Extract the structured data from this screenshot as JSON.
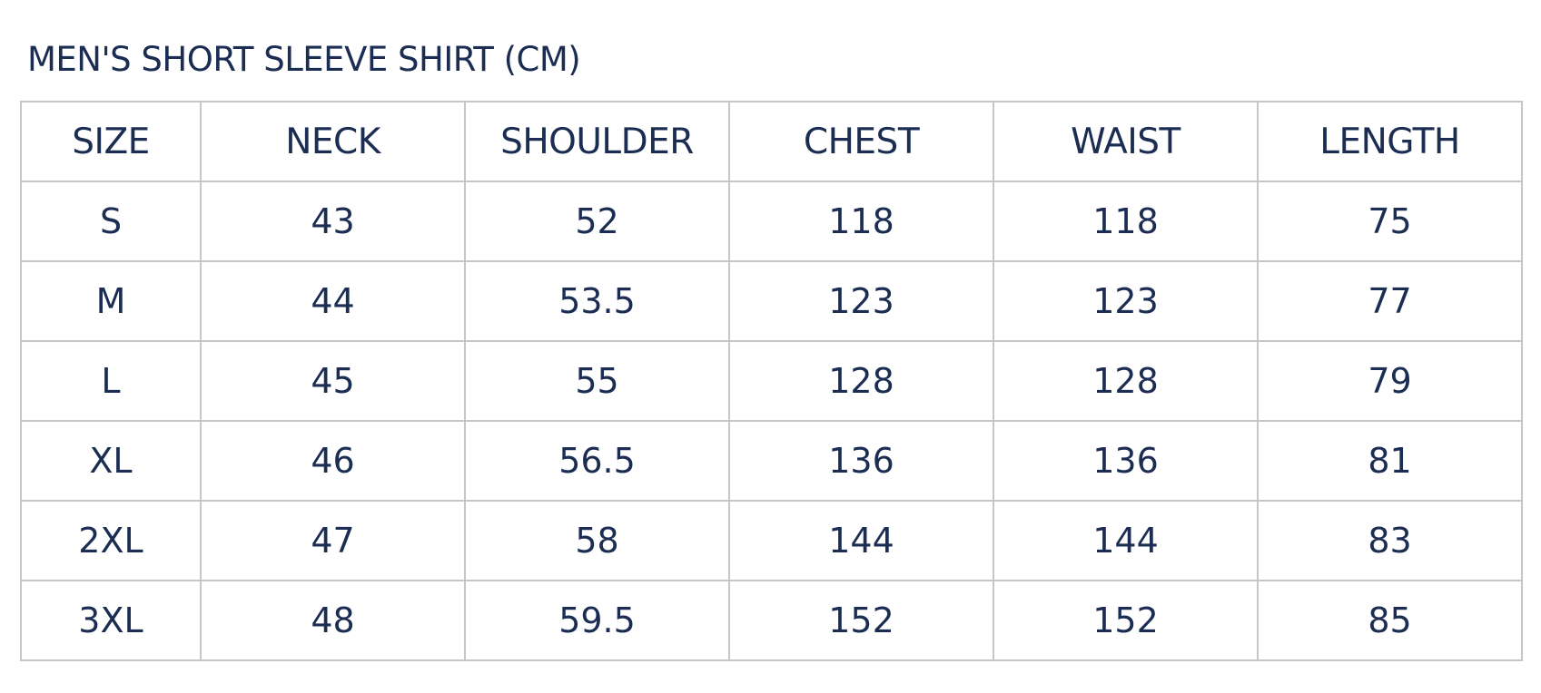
{
  "title": "MEN'S SHORT SLEEVE SHIRT (CM)",
  "colors": {
    "text": "#1b2d52",
    "border": "#c6c6c6"
  },
  "table": {
    "headers": [
      "SIZE",
      "NECK",
      "SHOULDER",
      "CHEST",
      "WAIST",
      "LENGTH"
    ],
    "rows": [
      [
        "S",
        "43",
        "52",
        "118",
        "118",
        "75"
      ],
      [
        "M",
        "44",
        "53.5",
        "123",
        "123",
        "77"
      ],
      [
        "L",
        "45",
        "55",
        "128",
        "128",
        "79"
      ],
      [
        "XL",
        "46",
        "56.5",
        "136",
        "136",
        "81"
      ],
      [
        "2XL",
        "47",
        "58",
        "144",
        "144",
        "83"
      ],
      [
        "3XL",
        "48",
        "59.5",
        "152",
        "152",
        "85"
      ]
    ]
  }
}
